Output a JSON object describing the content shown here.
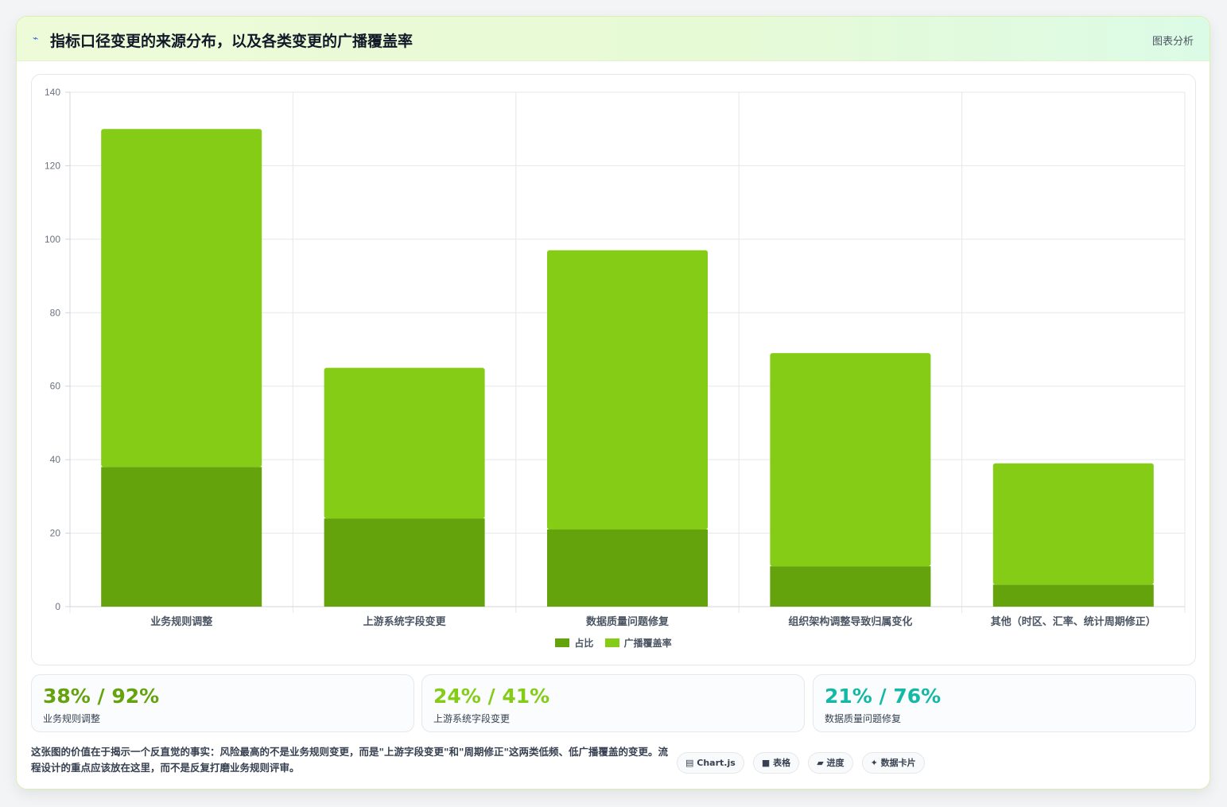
{
  "header": {
    "icon": "trend-icon",
    "title": "指标口径变更的来源分布，以及各类变更的广播覆盖率",
    "link": "图表分析"
  },
  "colors": {
    "share": "#65a30d",
    "coverage": "#84cc16",
    "stat1": "#65a30d",
    "stat2": "#84cc16",
    "stat3": "#14b8a6"
  },
  "chart_data": {
    "type": "bar",
    "stacked": true,
    "categories": [
      "业务规则调整",
      "上游系统字段变更",
      "数据质量问题修复",
      "组织架构调整导致归属变化",
      "其他（时区、汇率、统计周期修正）"
    ],
    "series": [
      {
        "name": "占比",
        "values": [
          38,
          24,
          21,
          11,
          6
        ]
      },
      {
        "name": "广播覆盖率",
        "values": [
          92,
          41,
          76,
          58,
          33
        ]
      }
    ],
    "ylim": [
      0,
      140
    ],
    "yticks": [
      0,
      20,
      40,
      60,
      80,
      100,
      120,
      140
    ],
    "grid": true,
    "legend": "bottom-center"
  },
  "stats": [
    {
      "value": "38% / 92%",
      "label": "业务规则调整"
    },
    {
      "value": "24% / 41%",
      "label": "上游系统字段变更"
    },
    {
      "value": "21% / 76%",
      "label": "数据质量问题修复"
    }
  ],
  "footnote": "这张图的价值在于揭示一个反直觉的事实：风险最高的不是业务规则变更，而是\"上游字段变更\"和\"周期修正\"这两类低频、低广播覆盖的变更。流程设计的重点应该放在这里，而不是反复打磨业务规则评审。",
  "tags": [
    {
      "icon": "chart-icon",
      "glyph": "▤",
      "label": "Chart.js"
    },
    {
      "icon": "table-icon",
      "glyph": "■",
      "label": "表格"
    },
    {
      "icon": "progress-icon",
      "glyph": "▰",
      "label": "进度"
    },
    {
      "icon": "card-icon",
      "glyph": "✦",
      "label": "数据卡片"
    }
  ]
}
